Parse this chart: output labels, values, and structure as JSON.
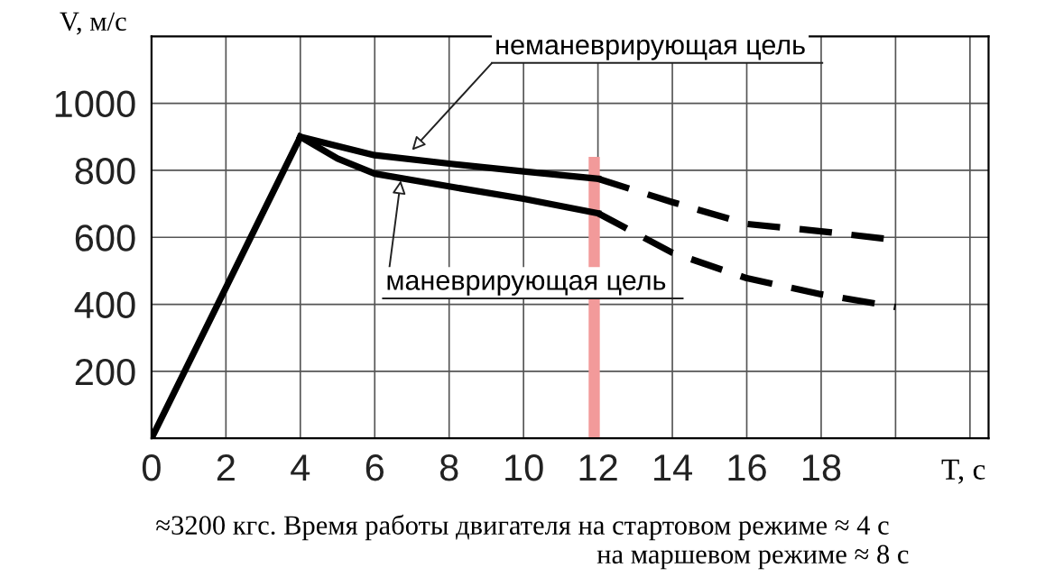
{
  "chart_data": {
    "type": "line",
    "ylabel": "V, м/с",
    "xlabel": "T, с",
    "annotations": [
      {
        "text": "неманеврирующая цель",
        "x": 7,
        "y": 860
      },
      {
        "text": "маневрирующая цель",
        "x": 6.7,
        "y": 770
      },
      "≈3200 кгс. Время работы двигателя на стартовом режиме ≈ 4 с",
      "на маршевом режиме ≈ 8 с"
    ],
    "series": [
      {
        "color": "#000000",
        "x": [
          0,
          4
        ],
        "values": [
          0,
          900
        ],
        "line_style": "solid"
      },
      {
        "color": "#000000",
        "x": [
          4,
          6,
          8,
          10,
          12
        ],
        "values": [
          900,
          845,
          820,
          797,
          775
        ],
        "line_style": "solid"
      },
      {
        "color": "#000000",
        "x": [
          4,
          5,
          6,
          8,
          10,
          12
        ],
        "values": [
          900,
          835,
          790,
          752,
          715,
          672
        ],
        "line_style": "solid"
      },
      {
        "color": "#000000",
        "x": [
          12,
          14,
          16,
          18,
          20
        ],
        "values": [
          775,
          705,
          640,
          618,
          592
        ],
        "line_style": "dashed"
      },
      {
        "color": "#000000",
        "x": [
          12,
          14,
          16,
          18,
          20
        ],
        "values": [
          672,
          554,
          478,
          430,
          392
        ],
        "line_style": "dashed"
      }
    ],
    "bands": [
      {
        "axis": "x",
        "from": 11.75,
        "to": 12.05,
        "color": "#f29a9a"
      }
    ],
    "xlim": [
      0,
      22.5
    ],
    "ylim": [
      0,
      1200
    ],
    "xticks": [
      0,
      2,
      4,
      6,
      8,
      10,
      12,
      14,
      16,
      18,
      {
        "value": 20,
        "label": null
      },
      {
        "value": 22,
        "label": null
      }
    ],
    "yticks": [
      {
        "value": 0,
        "label": null
      },
      200,
      400,
      600,
      800,
      1000
    ],
    "grid": true,
    "marker": "none"
  }
}
